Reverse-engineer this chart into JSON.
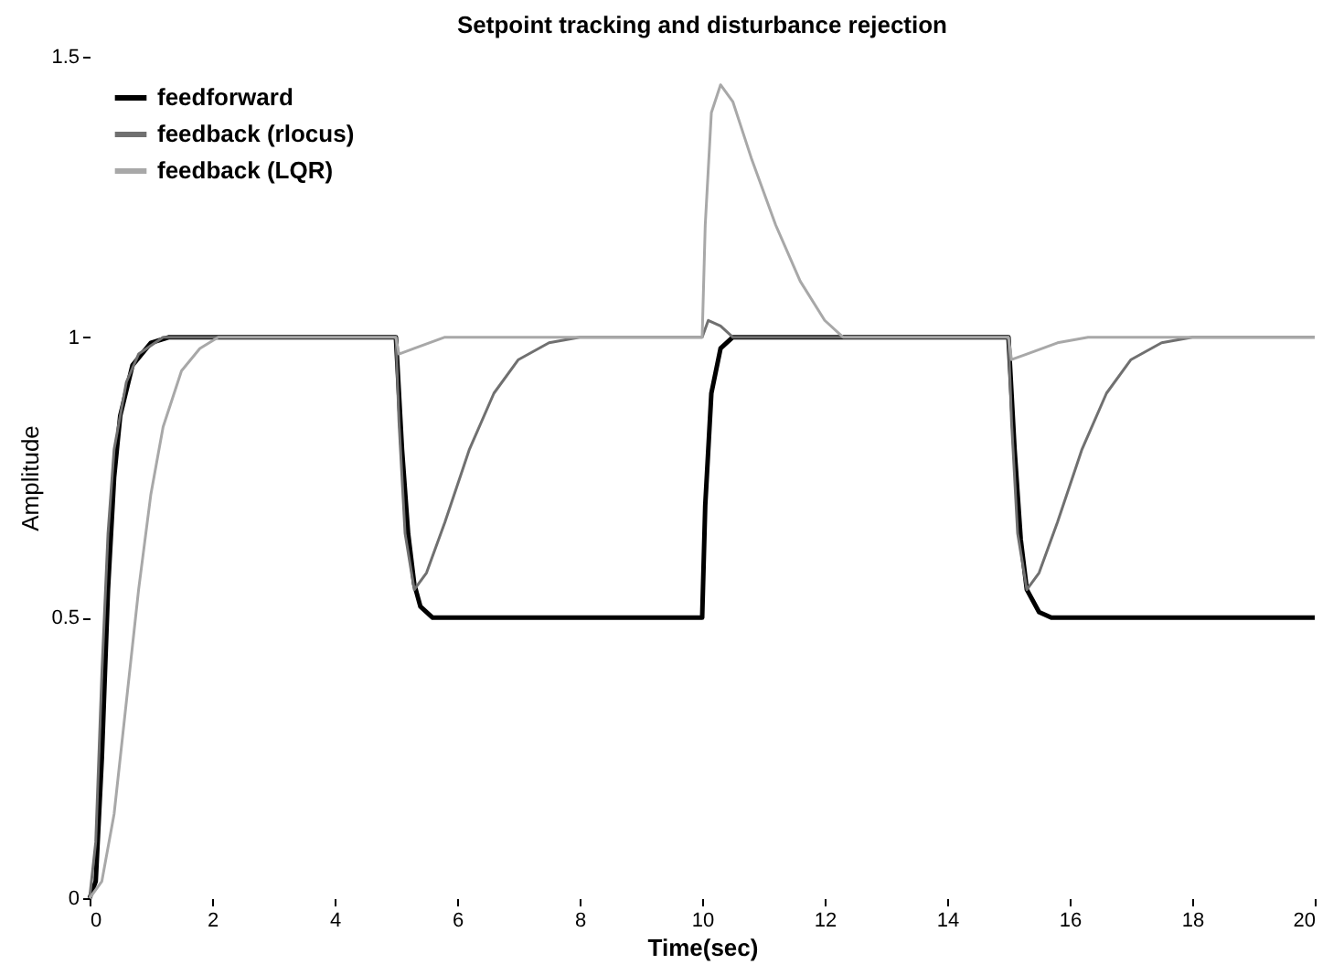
{
  "chart_data": {
    "type": "line",
    "title": "Setpoint tracking and disturbance rejection",
    "xlabel": "Time(sec)",
    "ylabel": "Amplitude",
    "xlim": [
      0,
      20
    ],
    "xticks": [
      0,
      2,
      4,
      6,
      8,
      10,
      12,
      14,
      16,
      18,
      20
    ],
    "ylim": [
      0,
      1.5
    ],
    "yticks": [
      0,
      0.5,
      1,
      1.5
    ],
    "grid": false,
    "legend": "top left",
    "line_style": "solid",
    "series": [
      {
        "name": "feedforward",
        "color": "#000000",
        "x": [
          0,
          0.1,
          0.2,
          0.3,
          0.4,
          0.5,
          0.7,
          1.0,
          1.3,
          5,
          5.1,
          5.2,
          5.3,
          5.4,
          5.6,
          10,
          10.05,
          10.15,
          10.3,
          10.5,
          15,
          15.1,
          15.2,
          15.3,
          15.5,
          15.7,
          20
        ],
        "values": [
          0,
          0.03,
          0.25,
          0.55,
          0.75,
          0.86,
          0.95,
          0.99,
          1,
          1,
          0.8,
          0.65,
          0.56,
          0.52,
          0.5,
          0.5,
          0.7,
          0.9,
          0.98,
          1,
          1,
          0.8,
          0.64,
          0.55,
          0.51,
          0.5,
          0.5
        ]
      },
      {
        "name": "feedback (rlocus)",
        "color": "#707070",
        "x": [
          0,
          0.1,
          0.2,
          0.3,
          0.4,
          0.6,
          0.8,
          1.2,
          5,
          5.05,
          5.15,
          5.3,
          5.5,
          5.8,
          6.2,
          6.6,
          7,
          7.5,
          8,
          10,
          10.1,
          10.3,
          10.5,
          15,
          15.05,
          15.15,
          15.3,
          15.5,
          15.8,
          16.2,
          16.6,
          17,
          17.5,
          18,
          20
        ],
        "values": [
          0,
          0.1,
          0.4,
          0.65,
          0.8,
          0.92,
          0.97,
          1,
          1,
          0.85,
          0.65,
          0.55,
          0.58,
          0.67,
          0.8,
          0.9,
          0.96,
          0.99,
          1,
          1,
          1.03,
          1.02,
          1,
          1,
          0.85,
          0.65,
          0.55,
          0.58,
          0.67,
          0.8,
          0.9,
          0.96,
          0.99,
          1,
          1
        ]
      },
      {
        "name": "feedback (LQR)",
        "color": "#a8a8a8",
        "x": [
          0,
          0.2,
          0.4,
          0.6,
          0.8,
          1.0,
          1.2,
          1.5,
          1.8,
          2.1,
          5,
          5.05,
          5.3,
          5.8,
          10,
          10.05,
          10.15,
          10.3,
          10.5,
          10.8,
          11.2,
          11.6,
          12,
          12.3,
          15,
          15.05,
          15.3,
          15.8,
          16.3,
          20
        ],
        "values": [
          0,
          0.03,
          0.15,
          0.35,
          0.55,
          0.72,
          0.84,
          0.94,
          0.98,
          1,
          1,
          0.97,
          0.98,
          1,
          1,
          1.2,
          1.4,
          1.45,
          1.42,
          1.32,
          1.2,
          1.1,
          1.03,
          1,
          1,
          0.96,
          0.97,
          0.99,
          1,
          1
        ]
      }
    ]
  }
}
